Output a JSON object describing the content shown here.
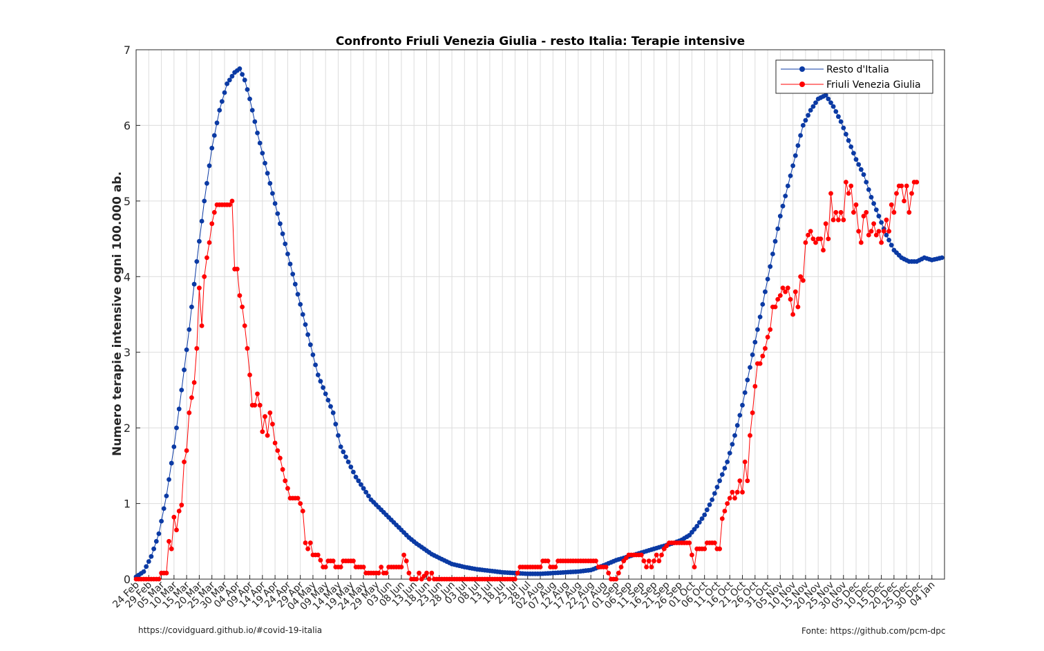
{
  "footer": {
    "left": "https://covidguard.github.io/#covid-19-italia",
    "right": "Fonte: https://github.com/pcm-dpc"
  },
  "colors": {
    "resto": "#0b3aa4",
    "fvg": "#ff0000",
    "grid": "#dcdcdc",
    "axis": "#262626"
  },
  "chart_data": {
    "type": "line",
    "title": "Confronto Friuli Venezia Giulia - resto Italia: Terapie intensive",
    "xlabel": "",
    "ylabel": "Numero terapie intensive ogni 100.000 ab.",
    "ylim": [
      0,
      7
    ],
    "yticks": [
      "0",
      "1",
      "2",
      "3",
      "4",
      "5",
      "6",
      "7"
    ],
    "x_start": "24 Feb",
    "n_days": 320,
    "tick_step_days": 5,
    "tick_labels": [
      "24 Feb",
      "29 Feb",
      "05 Mar",
      "10 Mar",
      "15 Mar",
      "20 Mar",
      "25 Mar",
      "30 Mar",
      "04 Apr",
      "09 Apr",
      "14 Apr",
      "19 Apr",
      "24 Apr",
      "29 Apr",
      "04 May",
      "09 May",
      "14 May",
      "19 May",
      "24 May",
      "29 May",
      "03 Jun",
      "08 Jun",
      "13 Jun",
      "18 Jun",
      "23 Jun",
      "28 Jun",
      "03 Jul",
      "08 Jul",
      "13 Jul",
      "18 Jul",
      "23 Jul",
      "28 Jul",
      "02 Aug",
      "07 Aug",
      "12 Aug",
      "17 Aug",
      "22 Aug",
      "27 Aug",
      "01 Sep",
      "06 Sep",
      "11 Sep",
      "16 Sep",
      "21 Sep",
      "26 Sep",
      "01 Oct",
      "06 Oct",
      "11 Oct",
      "16 Oct",
      "21 Oct",
      "26 Oct",
      "31 Oct",
      "05 Nov",
      "10 Nov",
      "15 Nov",
      "20 Nov",
      "25 Nov",
      "30 Nov",
      "05 Dec",
      "10 Dec",
      "15 Dec",
      "20 Dec",
      "25 Dec",
      "30 Dec",
      "04 Jan"
    ],
    "grid": true,
    "legend": "top-right",
    "series": [
      {
        "name": "Resto d'Italia",
        "color": "#0b3aa4",
        "knots": [
          [
            0,
            0.03
          ],
          [
            3,
            0.1
          ],
          [
            6,
            0.3
          ],
          [
            9,
            0.6
          ],
          [
            12,
            1.1
          ],
          [
            15,
            1.75
          ],
          [
            18,
            2.5
          ],
          [
            21,
            3.3
          ],
          [
            24,
            4.2
          ],
          [
            27,
            5.0
          ],
          [
            30,
            5.7
          ],
          [
            33,
            6.2
          ],
          [
            36,
            6.55
          ],
          [
            39,
            6.7
          ],
          [
            41,
            6.75
          ],
          [
            43,
            6.6
          ],
          [
            45,
            6.35
          ],
          [
            48,
            5.9
          ],
          [
            51,
            5.5
          ],
          [
            54,
            5.1
          ],
          [
            57,
            4.7
          ],
          [
            60,
            4.3
          ],
          [
            63,
            3.9
          ],
          [
            66,
            3.5
          ],
          [
            69,
            3.1
          ],
          [
            72,
            2.7
          ],
          [
            75,
            2.45
          ],
          [
            78,
            2.2
          ],
          [
            81,
            1.75
          ],
          [
            84,
            1.55
          ],
          [
            87,
            1.35
          ],
          [
            90,
            1.2
          ],
          [
            93,
            1.05
          ],
          [
            96,
            0.95
          ],
          [
            99,
            0.85
          ],
          [
            102,
            0.75
          ],
          [
            105,
            0.65
          ],
          [
            108,
            0.55
          ],
          [
            111,
            0.47
          ],
          [
            114,
            0.4
          ],
          [
            117,
            0.33
          ],
          [
            120,
            0.28
          ],
          [
            125,
            0.2
          ],
          [
            130,
            0.16
          ],
          [
            135,
            0.13
          ],
          [
            140,
            0.11
          ],
          [
            145,
            0.09
          ],
          [
            150,
            0.08
          ],
          [
            155,
            0.07
          ],
          [
            160,
            0.07
          ],
          [
            165,
            0.08
          ],
          [
            170,
            0.09
          ],
          [
            175,
            0.1
          ],
          [
            180,
            0.12
          ],
          [
            185,
            0.18
          ],
          [
            190,
            0.25
          ],
          [
            195,
            0.3
          ],
          [
            200,
            0.35
          ],
          [
            205,
            0.4
          ],
          [
            210,
            0.45
          ],
          [
            213,
            0.48
          ],
          [
            216,
            0.52
          ],
          [
            219,
            0.58
          ],
          [
            222,
            0.7
          ],
          [
            225,
            0.85
          ],
          [
            228,
            1.05
          ],
          [
            231,
            1.3
          ],
          [
            234,
            1.55
          ],
          [
            237,
            1.9
          ],
          [
            240,
            2.3
          ],
          [
            243,
            2.8
          ],
          [
            246,
            3.3
          ],
          [
            249,
            3.8
          ],
          [
            252,
            4.3
          ],
          [
            255,
            4.8
          ],
          [
            258,
            5.2
          ],
          [
            261,
            5.6
          ],
          [
            264,
            6.0
          ],
          [
            267,
            6.2
          ],
          [
            270,
            6.35
          ],
          [
            273,
            6.4
          ],
          [
            276,
            6.25
          ],
          [
            279,
            6.05
          ],
          [
            282,
            5.8
          ],
          [
            285,
            5.55
          ],
          [
            288,
            5.35
          ],
          [
            291,
            5.05
          ],
          [
            294,
            4.8
          ],
          [
            297,
            4.55
          ],
          [
            300,
            4.35
          ],
          [
            303,
            4.25
          ],
          [
            306,
            4.2
          ],
          [
            309,
            4.2
          ],
          [
            312,
            4.25
          ],
          [
            315,
            4.22
          ],
          [
            319,
            4.25
          ]
        ]
      },
      {
        "name": "Friuli Venezia Giulia",
        "color": "#ff0000",
        "knots": [
          [
            0,
            0
          ],
          [
            9,
            0
          ],
          [
            10,
            0.08
          ],
          [
            12,
            0.08
          ],
          [
            13,
            0.5
          ],
          [
            14,
            0.4
          ],
          [
            15,
            0.82
          ],
          [
            16,
            0.65
          ],
          [
            17,
            0.9
          ],
          [
            18,
            0.98
          ],
          [
            19,
            1.55
          ],
          [
            20,
            1.7
          ],
          [
            21,
            2.2
          ],
          [
            22,
            2.4
          ],
          [
            23,
            2.6
          ],
          [
            24,
            3.05
          ],
          [
            25,
            3.85
          ],
          [
            26,
            3.35
          ],
          [
            27,
            4.0
          ],
          [
            28,
            4.25
          ],
          [
            29,
            4.45
          ],
          [
            30,
            4.7
          ],
          [
            31,
            4.85
          ],
          [
            32,
            4.95
          ],
          [
            37,
            4.95
          ],
          [
            38,
            5.0
          ],
          [
            39,
            4.1
          ],
          [
            40,
            4.1
          ],
          [
            41,
            3.75
          ],
          [
            42,
            3.6
          ],
          [
            43,
            3.35
          ],
          [
            44,
            3.05
          ],
          [
            45,
            2.7
          ],
          [
            46,
            2.3
          ],
          [
            47,
            2.3
          ],
          [
            48,
            2.45
          ],
          [
            49,
            2.3
          ],
          [
            50,
            1.95
          ],
          [
            51,
            2.15
          ],
          [
            52,
            1.9
          ],
          [
            53,
            2.2
          ],
          [
            54,
            2.05
          ],
          [
            55,
            1.8
          ],
          [
            56,
            1.7
          ],
          [
            57,
            1.6
          ],
          [
            58,
            1.45
          ],
          [
            59,
            1.3
          ],
          [
            60,
            1.2
          ],
          [
            61,
            1.07
          ],
          [
            64,
            1.07
          ],
          [
            65,
            1.0
          ],
          [
            66,
            0.9
          ],
          [
            67,
            0.48
          ],
          [
            68,
            0.4
          ],
          [
            69,
            0.48
          ],
          [
            70,
            0.32
          ],
          [
            72,
            0.32
          ],
          [
            73,
            0.25
          ],
          [
            74,
            0.16
          ],
          [
            75,
            0.16
          ],
          [
            76,
            0.24
          ],
          [
            78,
            0.24
          ],
          [
            79,
            0.16
          ],
          [
            81,
            0.16
          ],
          [
            82,
            0.24
          ],
          [
            86,
            0.24
          ],
          [
            87,
            0.16
          ],
          [
            90,
            0.16
          ],
          [
            91,
            0.08
          ],
          [
            96,
            0.08
          ],
          [
            97,
            0.16
          ],
          [
            98,
            0.08
          ],
          [
            99,
            0.08
          ],
          [
            100,
            0.16
          ],
          [
            105,
            0.16
          ],
          [
            106,
            0.32
          ],
          [
            107,
            0.24
          ],
          [
            108,
            0.08
          ],
          [
            109,
            0.0
          ],
          [
            111,
            0.0
          ],
          [
            112,
            0.08
          ],
          [
            113,
            0.0
          ],
          [
            115,
            0.08
          ],
          [
            116,
            0.0
          ],
          [
            117,
            0.08
          ],
          [
            118,
            0.0
          ],
          [
            150,
            0.0
          ],
          [
            151,
            0.08
          ],
          [
            152,
            0.16
          ],
          [
            160,
            0.16
          ],
          [
            161,
            0.24
          ],
          [
            163,
            0.24
          ],
          [
            164,
            0.16
          ],
          [
            166,
            0.16
          ],
          [
            167,
            0.24
          ],
          [
            182,
            0.24
          ],
          [
            183,
            0.16
          ],
          [
            186,
            0.16
          ],
          [
            187,
            0.08
          ],
          [
            188,
            0.0
          ],
          [
            190,
            0.0
          ],
          [
            191,
            0.08
          ],
          [
            192,
            0.16
          ],
          [
            193,
            0.24
          ],
          [
            195,
            0.32
          ],
          [
            200,
            0.32
          ],
          [
            201,
            0.24
          ],
          [
            202,
            0.16
          ],
          [
            203,
            0.24
          ],
          [
            204,
            0.16
          ],
          [
            205,
            0.24
          ],
          [
            206,
            0.32
          ],
          [
            207,
            0.24
          ],
          [
            208,
            0.32
          ],
          [
            209,
            0.4
          ],
          [
            211,
            0.48
          ],
          [
            219,
            0.48
          ],
          [
            220,
            0.32
          ],
          [
            221,
            0.16
          ],
          [
            222,
            0.4
          ],
          [
            225,
            0.4
          ],
          [
            226,
            0.48
          ],
          [
            229,
            0.48
          ],
          [
            230,
            0.4
          ],
          [
            231,
            0.4
          ],
          [
            232,
            0.8
          ],
          [
            233,
            0.9
          ],
          [
            234,
            1.0
          ],
          [
            235,
            1.07
          ],
          [
            236,
            1.15
          ],
          [
            237,
            1.07
          ],
          [
            238,
            1.15
          ],
          [
            239,
            1.3
          ],
          [
            240,
            1.15
          ],
          [
            241,
            1.55
          ],
          [
            242,
            1.3
          ],
          [
            243,
            1.9
          ],
          [
            244,
            2.2
          ],
          [
            245,
            2.55
          ],
          [
            246,
            2.85
          ],
          [
            247,
            2.85
          ],
          [
            248,
            2.95
          ],
          [
            249,
            3.05
          ],
          [
            250,
            3.2
          ],
          [
            251,
            3.3
          ],
          [
            252,
            3.6
          ],
          [
            253,
            3.6
          ],
          [
            254,
            3.7
          ],
          [
            255,
            3.75
          ],
          [
            256,
            3.85
          ],
          [
            257,
            3.8
          ],
          [
            258,
            3.85
          ],
          [
            259,
            3.7
          ],
          [
            260,
            3.5
          ],
          [
            261,
            3.8
          ],
          [
            262,
            3.6
          ],
          [
            263,
            4.0
          ],
          [
            264,
            3.95
          ],
          [
            265,
            4.45
          ],
          [
            266,
            4.55
          ],
          [
            267,
            4.6
          ],
          [
            268,
            4.5
          ],
          [
            269,
            4.45
          ],
          [
            270,
            4.5
          ],
          [
            271,
            4.5
          ],
          [
            272,
            4.35
          ],
          [
            273,
            4.7
          ],
          [
            274,
            4.5
          ],
          [
            275,
            5.1
          ],
          [
            276,
            4.75
          ],
          [
            277,
            4.85
          ],
          [
            278,
            4.75
          ],
          [
            279,
            4.85
          ],
          [
            280,
            4.75
          ],
          [
            281,
            5.25
          ],
          [
            282,
            5.1
          ],
          [
            283,
            5.2
          ],
          [
            284,
            4.85
          ],
          [
            285,
            4.95
          ],
          [
            286,
            4.6
          ],
          [
            287,
            4.45
          ],
          [
            288,
            4.8
          ],
          [
            289,
            4.85
          ],
          [
            290,
            4.55
          ],
          [
            291,
            4.6
          ],
          [
            292,
            4.7
          ],
          [
            293,
            4.55
          ],
          [
            294,
            4.6
          ],
          [
            295,
            4.45
          ],
          [
            296,
            4.6
          ],
          [
            297,
            4.75
          ],
          [
            298,
            4.6
          ],
          [
            299,
            4.95
          ],
          [
            300,
            4.85
          ],
          [
            301,
            5.1
          ],
          [
            302,
            5.2
          ],
          [
            303,
            5.2
          ],
          [
            304,
            5.0
          ],
          [
            305,
            5.2
          ],
          [
            306,
            4.85
          ],
          [
            307,
            5.1
          ],
          [
            308,
            5.25
          ],
          [
            309,
            5.25
          ]
        ]
      }
    ]
  }
}
